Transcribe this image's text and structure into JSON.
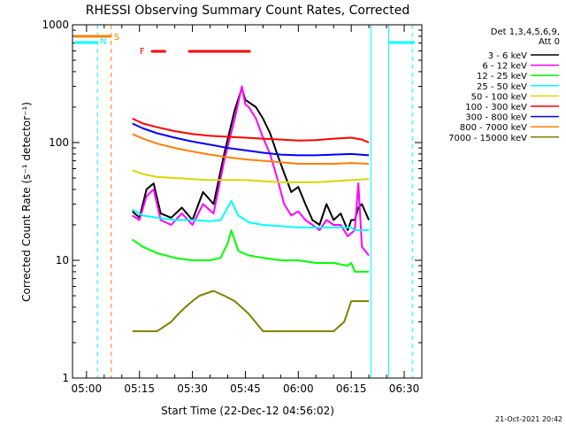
{
  "chart_data": {
    "type": "line",
    "title": "RHESSI Observing Summary Count Rates, Corrected",
    "xlabel": "Start Time (22-Dec-12 04:56:02)",
    "ylabel": "Corrected Count Rate (s⁻¹ detector⁻¹)",
    "y_scale": "log",
    "ylim": [
      1,
      1000
    ],
    "xlim_minutes": [
      296.03,
      395
    ],
    "x_ticks": [
      {
        "label": "05:00",
        "min": 300
      },
      {
        "label": "05:15",
        "min": 315
      },
      {
        "label": "05:30",
        "min": 330
      },
      {
        "label": "05:45",
        "min": 345
      },
      {
        "label": "06:00",
        "min": 360
      },
      {
        "label": "06:15",
        "min": 375
      },
      {
        "label": "06:30",
        "min": 390
      }
    ],
    "y_ticks": [
      {
        "label": "1",
        "value": 1
      },
      {
        "label": "10",
        "value": 10
      },
      {
        "label": "100",
        "value": 100
      },
      {
        "label": "1000",
        "value": 1000
      }
    ],
    "legend_title": "Det 1,3,4,5,6,9,",
    "legend_subtitle": "Att 0",
    "series": [
      {
        "name": "3 - 6 keV",
        "color": "#000000",
        "x": [
          313,
          315,
          317,
          319,
          321,
          324,
          327,
          330,
          333,
          336,
          339,
          342,
          344,
          345,
          346,
          348,
          350,
          352,
          354,
          356,
          358,
          360,
          362,
          364,
          366,
          368,
          370,
          372,
          374,
          375,
          376,
          377,
          378,
          380
        ],
        "y": [
          26,
          23,
          40,
          45,
          25,
          23,
          28,
          22,
          38,
          30,
          80,
          190,
          290,
          230,
          220,
          200,
          160,
          120,
          80,
          55,
          38,
          42,
          30,
          22,
          20,
          30,
          22,
          25,
          18,
          22,
          22,
          28,
          30,
          22
        ]
      },
      {
        "name": "6 - 12 keV",
        "color": "#ff00ff",
        "x": [
          313,
          315,
          317,
          319,
          321,
          324,
          327,
          330,
          333,
          336,
          339,
          342,
          344,
          345,
          346,
          348,
          350,
          352,
          354,
          356,
          358,
          360,
          362,
          364,
          366,
          368,
          370,
          372,
          374,
          375,
          376,
          377,
          378,
          380
        ],
        "y": [
          24,
          22,
          35,
          40,
          22,
          20,
          25,
          20,
          30,
          25,
          70,
          160,
          300,
          210,
          200,
          160,
          110,
          80,
          50,
          30,
          24,
          26,
          22,
          20,
          18,
          22,
          20,
          20,
          16,
          17,
          18,
          45,
          13,
          11
        ]
      },
      {
        "name": "12 - 25 keV",
        "color": "#00ff00",
        "x": [
          313,
          316,
          320,
          325,
          330,
          335,
          338,
          340,
          341,
          343,
          346,
          350,
          355,
          360,
          365,
          370,
          374,
          375,
          376,
          378,
          380
        ],
        "y": [
          15,
          13,
          11.5,
          10.5,
          10,
          10,
          10.5,
          14,
          18,
          12,
          11,
          10.5,
          10,
          10,
          9.5,
          9.5,
          9,
          9.5,
          8,
          8,
          8
        ]
      },
      {
        "name": "25 - 50 keV",
        "color": "#00ffff",
        "x": [
          313,
          316,
          320,
          325,
          330,
          335,
          338,
          340,
          341,
          343,
          346,
          350,
          355,
          360,
          365,
          370,
          375,
          376,
          380
        ],
        "y": [
          27,
          24,
          23,
          22,
          22,
          21.5,
          22,
          28,
          32,
          24,
          21,
          20,
          19.5,
          19,
          19,
          19,
          19,
          18,
          18
        ]
      },
      {
        "name": "50 - 100 keV",
        "color": "#d8d800",
        "x": [
          313,
          316,
          320,
          325,
          330,
          335,
          340,
          345,
          350,
          355,
          360,
          365,
          370,
          375,
          380
        ],
        "y": [
          58,
          54,
          51,
          50,
          49,
          48,
          48,
          48,
          47,
          46,
          46,
          46,
          47,
          48,
          49
        ]
      },
      {
        "name": "100 - 300 keV",
        "color": "#ff0000",
        "x": [
          313,
          316,
          320,
          325,
          330,
          335,
          340,
          345,
          350,
          355,
          360,
          365,
          370,
          375,
          378,
          380
        ],
        "y": [
          160,
          145,
          135,
          125,
          118,
          114,
          112,
          110,
          108,
          106,
          104,
          105,
          108,
          110,
          106,
          100
        ]
      },
      {
        "name": "300 - 800 keV",
        "color": "#0000ff",
        "x": [
          313,
          316,
          320,
          325,
          330,
          335,
          340,
          345,
          350,
          355,
          360,
          365,
          370,
          375,
          380
        ],
        "y": [
          145,
          132,
          120,
          110,
          102,
          96,
          90,
          86,
          82,
          79,
          78,
          78,
          79,
          80,
          78
        ]
      },
      {
        "name": "800 - 7000 keV",
        "color": "#ff8000",
        "x": [
          313,
          316,
          320,
          325,
          330,
          335,
          340,
          345,
          350,
          355,
          360,
          365,
          370,
          375,
          380
        ],
        "y": [
          118,
          108,
          98,
          90,
          84,
          79,
          75,
          72,
          70,
          68,
          66,
          66,
          66,
          67,
          66
        ]
      },
      {
        "name": "7000 - 15000 keV",
        "color": "#808000",
        "x": [
          313,
          316,
          320,
          324,
          326,
          328,
          330,
          332,
          336,
          339,
          342,
          346,
          350,
          355,
          360,
          365,
          370,
          373,
          375,
          377,
          380
        ],
        "y": [
          2.5,
          2.5,
          2.5,
          3,
          3.5,
          4,
          4.5,
          5,
          5.5,
          5,
          4.5,
          3.5,
          2.5,
          2.5,
          2.5,
          2.5,
          2.5,
          3,
          4.5,
          4.5,
          4.5
        ]
      }
    ],
    "annotations": [
      {
        "label": "S",
        "color": "#ff8000"
      },
      {
        "label": "N",
        "color": "#00ffff"
      },
      {
        "label": "F",
        "color": "#ff0000"
      }
    ],
    "footer_date": "21-Oct-2021 20:42"
  }
}
